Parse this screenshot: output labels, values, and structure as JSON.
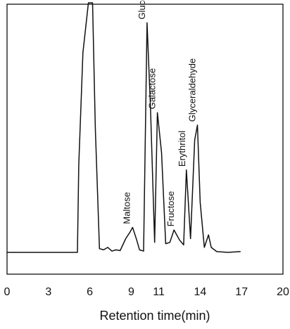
{
  "chart_data": {
    "type": "line",
    "title": "",
    "xlabel": "Retention time(min)",
    "ylabel": "",
    "xlim": [
      0,
      20
    ],
    "ylim": [
      0,
      100
    ],
    "grid": false,
    "x_ticks": [
      0,
      3,
      6,
      9,
      11,
      14,
      17,
      20
    ],
    "x_tick_labels": [
      "0",
      "3",
      "6",
      "9",
      "11",
      "14",
      "17",
      "20"
    ],
    "colors": {
      "line": "#111111",
      "frame": "#111111"
    },
    "series": [
      {
        "x": [
          0.0,
          5.1,
          5.2,
          5.5,
          5.9,
          6.2,
          6.4,
          6.7,
          7.0,
          7.3,
          7.6,
          7.9,
          8.2,
          8.6,
          8.9,
          9.1,
          9.4,
          9.6,
          9.9,
          10.15,
          10.4,
          10.7,
          10.9,
          11.2,
          11.5,
          11.8,
          12.1,
          12.5,
          12.8,
          13.0,
          13.3,
          13.6,
          13.8,
          14.0,
          14.3,
          14.6,
          14.8,
          15.2,
          16.0,
          16.9
        ],
        "y": [
          0.0,
          0.0,
          35.0,
          80.0,
          100.0,
          100.0,
          50.0,
          1.5,
          1.0,
          2.0,
          0.5,
          1.0,
          0.7,
          5.5,
          8.0,
          10.0,
          5.0,
          1.0,
          0.5,
          92.0,
          58.0,
          4.0,
          56.0,
          40.0,
          3.5,
          4.0,
          9.0,
          5.0,
          3.0,
          33.0,
          5.5,
          45.0,
          51.0,
          20.0,
          2.0,
          7.0,
          2.0,
          0.3,
          0.0,
          0.3
        ]
      }
    ],
    "annotations": [
      {
        "text": "Maltose",
        "x": 9.0,
        "y": 10.5
      },
      {
        "text": "Glucose",
        "x": 10.1,
        "y": 92.5
      },
      {
        "text": "Galactose",
        "x": 10.85,
        "y": 56.5
      },
      {
        "text": "Fructose",
        "x": 12.2,
        "y": 9.5
      },
      {
        "text": "Erythritol",
        "x": 13.0,
        "y": 33.5
      },
      {
        "text": "Glyceraldehyde",
        "x": 13.75,
        "y": 51.5
      }
    ]
  }
}
